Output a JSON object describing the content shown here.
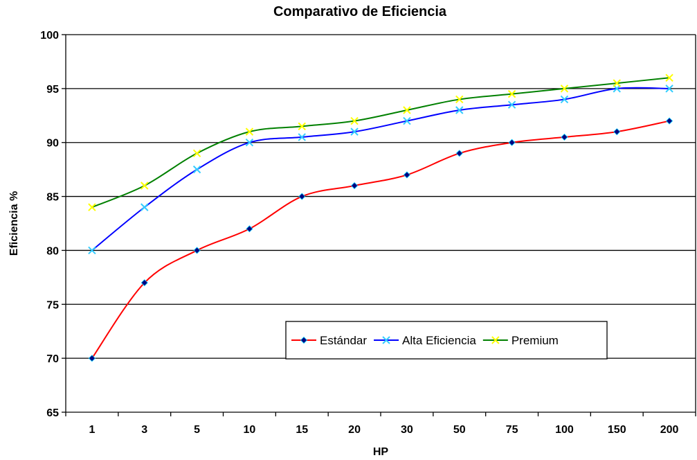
{
  "chart_data": {
    "type": "line",
    "title": "Comparativo de Eficiencia",
    "xlabel": "HP",
    "ylabel": "Eficiencia %",
    "categories": [
      "1",
      "3",
      "5",
      "10",
      "15",
      "20",
      "30",
      "50",
      "75",
      "100",
      "150",
      "200"
    ],
    "ylim": [
      65,
      100
    ],
    "yticks": [
      65,
      70,
      75,
      80,
      85,
      90,
      95,
      100
    ],
    "grid": "horizontal",
    "legend_position": "bottom-right",
    "series": [
      {
        "name": "Estándar",
        "color": "#ff0000",
        "marker": "diamond",
        "marker_color": "#000080",
        "values": [
          70,
          77,
          80,
          82,
          85,
          86,
          87,
          89,
          90,
          90.5,
          91,
          92
        ]
      },
      {
        "name": "Alta Eficiencia",
        "color": "#0000ff",
        "marker": "x",
        "marker_color": "#33ccff",
        "values": [
          80,
          84,
          87.5,
          90,
          90.5,
          91,
          92,
          93,
          93.5,
          94,
          95,
          95
        ]
      },
      {
        "name": "Premium",
        "color": "#008000",
        "marker": "x",
        "marker_color": "#ffff00",
        "values": [
          84,
          86,
          89,
          91,
          91.5,
          92,
          93,
          94,
          94.5,
          95,
          95.5,
          96
        ]
      }
    ]
  }
}
